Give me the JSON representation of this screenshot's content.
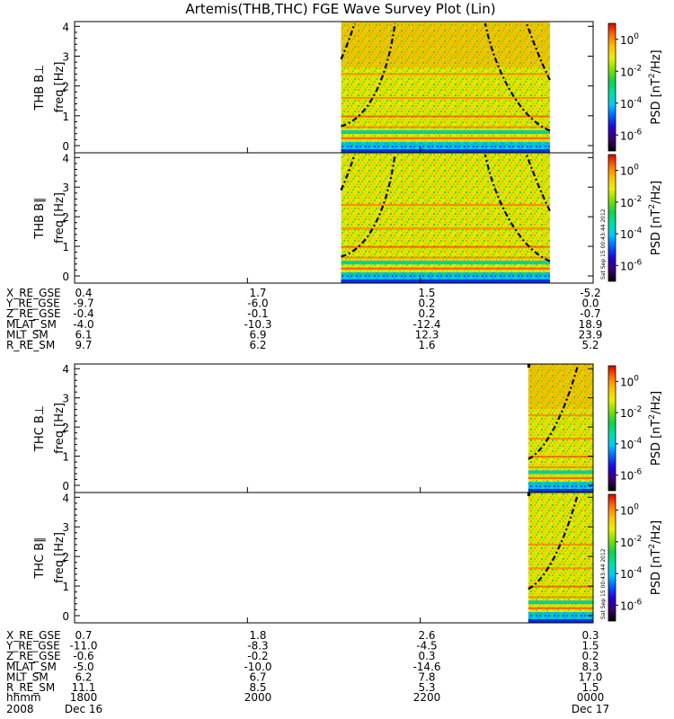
{
  "title": "Artemis(THB,THC) FGE Wave Survey Plot (Lin)",
  "colors": {
    "palette": [
      "#000000",
      "#3a006a",
      "#2400d8",
      "#0060ff",
      "#00c8ff",
      "#00e0a0",
      "#10d050",
      "#80e000",
      "#e8f000",
      "#ffc000",
      "#ff7000",
      "#e00000"
    ],
    "curve": "#000000",
    "axis": "#000000"
  },
  "colorbar": {
    "label": "PSD [nT²/Hz]",
    "label_prefix": "PSD [nT",
    "label_sup": "2",
    "label_suffix": "/Hz]",
    "exponents": [
      "0",
      "-2",
      "-4",
      "-6"
    ],
    "tick_base": "10"
  },
  "stamp": "Sat Sep 15 00:43:44 2012",
  "panels": [
    {
      "id": "thb-bperp",
      "ylabel": "THB B⊥",
      "unit": "freq [Hz]",
      "yticks": [
        "0",
        "1",
        "2",
        "3",
        "4"
      ],
      "data_start_hhmm": "2105",
      "data_end_hhmm": "2330"
    },
    {
      "id": "thb-bpar",
      "ylabel": "THB B∥",
      "unit": "freq [Hz]",
      "yticks": [
        "0",
        "1",
        "2",
        "3",
        "4"
      ],
      "data_start_hhmm": "2105",
      "data_end_hhmm": "2330"
    },
    {
      "id": "thc-bperp",
      "ylabel": "THC B⊥",
      "unit": "freq [Hz]",
      "yticks": [
        "0",
        "1",
        "2",
        "3",
        "4"
      ],
      "data_start_hhmm": "2315",
      "data_end_hhmm": "0000"
    },
    {
      "id": "thc-bpar",
      "ylabel": "THC B∥",
      "unit": "freq [Hz]",
      "yticks": [
        "0",
        "1",
        "2",
        "3",
        "4"
      ],
      "data_start_hhmm": "2315",
      "data_end_hhmm": "0000"
    }
  ],
  "ephemeris": [
    {
      "rows": [
        {
          "label": "X_RE_GSE",
          "values": [
            "0.4",
            "1.7",
            "1.5",
            "-5.2"
          ]
        },
        {
          "label": "Y_RE_GSE",
          "values": [
            "-9.7",
            "-6.0",
            "0.2",
            "0.0"
          ]
        },
        {
          "label": "Z_RE_GSE",
          "values": [
            "-0.4",
            "-0.1",
            "0.2",
            "-0.7"
          ]
        },
        {
          "label": "MLAT_SM",
          "values": [
            "-4.0",
            "-10.3",
            "-12.4",
            "18.9"
          ]
        },
        {
          "label": "MLT_SM",
          "values": [
            "6.1",
            "6.9",
            "12.3",
            "23.9"
          ]
        },
        {
          "label": "R_RE_SM",
          "values": [
            "9.7",
            "6.2",
            "1.6",
            "5.2"
          ]
        }
      ]
    },
    {
      "rows": [
        {
          "label": "X_RE_GSE",
          "values": [
            "0.7",
            "1.8",
            "2.6",
            "0.3"
          ]
        },
        {
          "label": "Y_RE_GSE",
          "values": [
            "-11.0",
            "-8.3",
            "-4.5",
            "1.5"
          ]
        },
        {
          "label": "Z_RE_GSE",
          "values": [
            "-0.6",
            "-0.2",
            "0.3",
            "0.2"
          ]
        },
        {
          "label": "MLAT_SM",
          "values": [
            "-5.0",
            "-10.0",
            "-14.6",
            "8.3"
          ]
        },
        {
          "label": "MLT_SM",
          "values": [
            "6.2",
            "6.7",
            "7.8",
            "17.0"
          ]
        },
        {
          "label": "R_RE_SM",
          "values": [
            "11.1",
            "8.5",
            "5.3",
            "1.5"
          ]
        }
      ]
    }
  ],
  "time_axis": {
    "label": "hhmm",
    "ticks": [
      "1800",
      "2000",
      "2200",
      "0000"
    ],
    "year": "2008",
    "start_date": "Dec 16",
    "end_date": "Dec 17"
  },
  "chart_data": {
    "type": "heatmap",
    "title": "Artemis(THB,THC) FGE Wave Survey Plot (Lin)",
    "x_range": [
      "2008-12-16 18:00",
      "2008-12-17 00:00"
    ],
    "x_ticks": [
      "1800",
      "2000",
      "2200",
      "0000"
    ],
    "y_range": [
      0,
      4.1
    ],
    "y_unit": "freq [Hz]",
    "color_scale": "log",
    "color_range": [
      1e-07,
      10
    ],
    "color_label": "PSD [nT²/Hz]",
    "panels": [
      "THB B⊥",
      "THB B∥",
      "THC B⊥",
      "THC B∥"
    ]
  }
}
